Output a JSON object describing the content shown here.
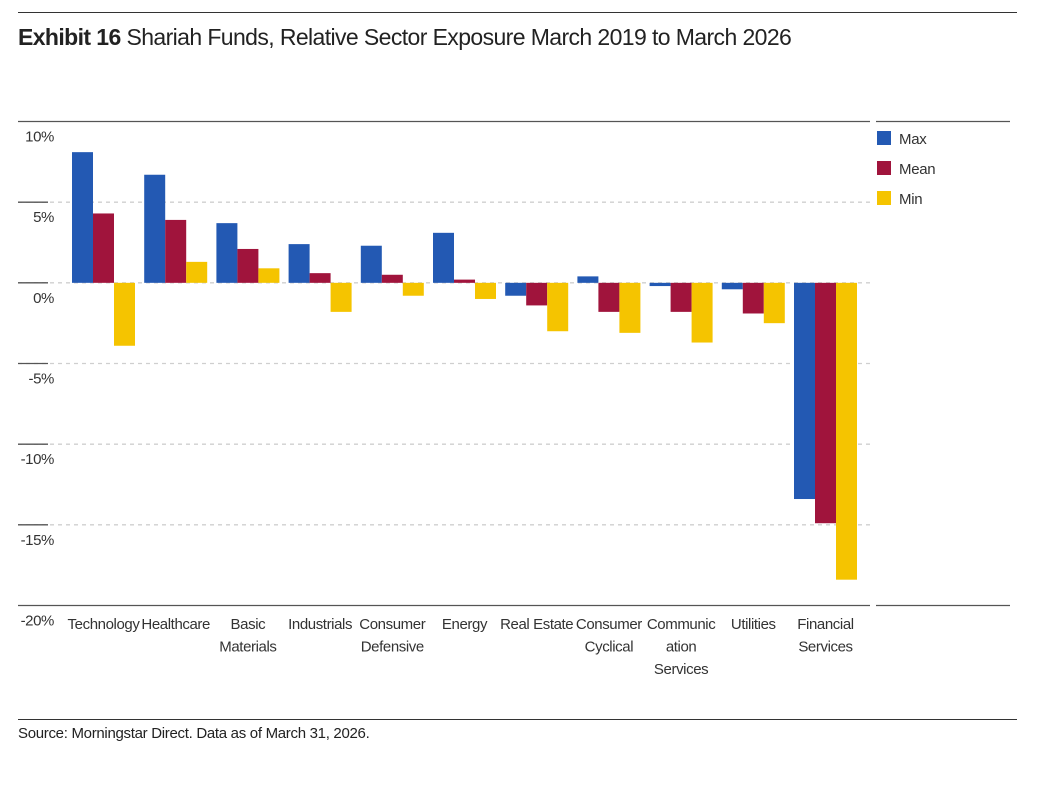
{
  "title": {
    "exhibit": "Exhibit 16",
    "text": "Shariah Funds, Relative Sector Exposure March 2019 to March 2026"
  },
  "source": "Source: Morningstar Direct. Data as of March 31, 2026.",
  "colors": {
    "max": "#2359b3",
    "mean": "#a0143c",
    "min": "#f5c400"
  },
  "chart_data": {
    "type": "bar",
    "categories": [
      [
        "Technology"
      ],
      [
        "Healthcare"
      ],
      [
        "Basic",
        "Materials"
      ],
      [
        "Industrials"
      ],
      [
        "Consumer",
        "Defensive"
      ],
      [
        "Energy"
      ],
      [
        "Real Estate"
      ],
      [
        "Consumer",
        "Cyclical"
      ],
      [
        "Communic",
        "ation",
        "Services"
      ],
      [
        "Utilities"
      ],
      [
        "Financial",
        "Services"
      ]
    ],
    "series": [
      {
        "name": "Max",
        "key": "max",
        "values": [
          8.1,
          6.7,
          3.7,
          2.4,
          2.3,
          3.1,
          -0.8,
          0.4,
          -0.2,
          -0.4,
          -13.4
        ]
      },
      {
        "name": "Mean",
        "key": "mean",
        "values": [
          4.3,
          3.9,
          2.1,
          0.6,
          0.5,
          0.2,
          -1.4,
          -1.8,
          -1.8,
          -1.9,
          -14.9
        ]
      },
      {
        "name": "Min",
        "key": "min",
        "values": [
          -3.9,
          1.3,
          0.9,
          -1.8,
          -0.8,
          -1.0,
          -3.0,
          -3.1,
          -3.7,
          -2.5,
          -18.4
        ]
      }
    ],
    "yticks": [
      10,
      5,
      0,
      -5,
      -10,
      -15,
      -20
    ],
    "ytick_labels": [
      "10%",
      "5%",
      "0%",
      "-5%",
      "-10%",
      "-15%",
      "-20%"
    ],
    "ylim": [
      -20,
      10
    ],
    "grid": true,
    "legend": "right"
  }
}
